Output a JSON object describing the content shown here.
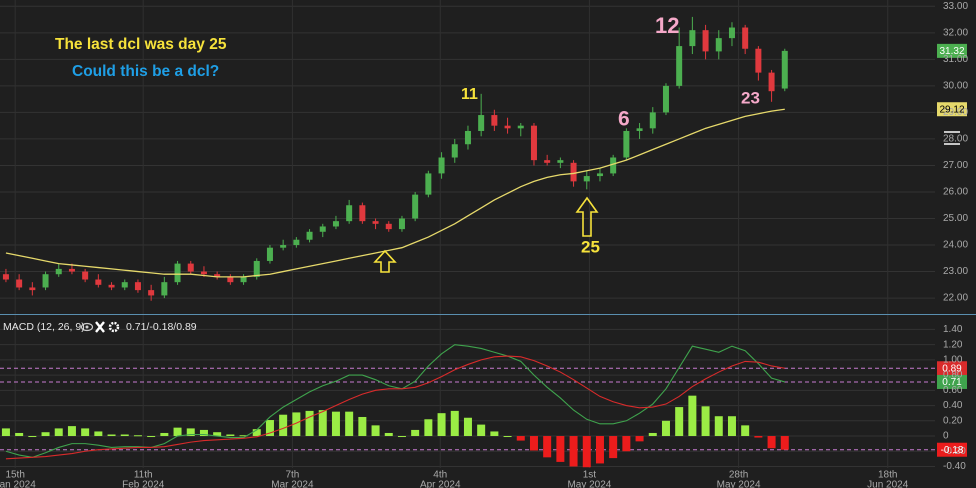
{
  "chart_data": [
    {
      "type": "candlestick",
      "annotations": [
        {
          "text": "The last dcl was day 25",
          "color": "#f6e23b"
        },
        {
          "text": "Could this be a dcl?",
          "color": "#1f9fe6"
        },
        {
          "text": "11",
          "color": "#f6e23b"
        },
        {
          "text": "12",
          "color": "#f5a9c9"
        },
        {
          "text": "6",
          "color": "#f5a9c9"
        },
        {
          "text": "23",
          "color": "#f5a9c9"
        },
        {
          "text": "25",
          "color": "#f6e23b"
        }
      ],
      "open": [
        22.9,
        22.7,
        22.4,
        22.4,
        22.9,
        23.1,
        23.0,
        22.7,
        22.5,
        22.4,
        22.6,
        22.3,
        22.1,
        22.6,
        23.3,
        23.0,
        22.9,
        22.8,
        22.6,
        22.8,
        23.4,
        23.9,
        24.0,
        24.2,
        24.5,
        24.7,
        24.9,
        25.5,
        24.9,
        24.8,
        24.6,
        25.0,
        25.9,
        26.7,
        27.3,
        27.8,
        28.3,
        28.9,
        28.5,
        28.4,
        28.5,
        27.2,
        27.1,
        27.1,
        26.4,
        26.6,
        26.7,
        27.3,
        28.3,
        28.4,
        29.0,
        30.0,
        31.5,
        32.1,
        31.3,
        31.8,
        32.2,
        31.4,
        30.5,
        29.9
      ],
      "high": [
        23.1,
        22.9,
        22.6,
        23.0,
        23.3,
        23.3,
        23.1,
        22.9,
        22.6,
        22.7,
        22.7,
        22.5,
        22.8,
        23.4,
        23.4,
        23.2,
        23.0,
        22.9,
        22.9,
        23.5,
        24.0,
        24.2,
        24.3,
        24.6,
        24.8,
        25.1,
        25.7,
        25.6,
        25.0,
        24.9,
        25.1,
        26.0,
        26.8,
        27.5,
        28.0,
        28.5,
        29.7,
        29.1,
        28.8,
        28.6,
        28.6,
        27.4,
        27.3,
        27.2,
        26.8,
        26.9,
        27.4,
        28.4,
        28.6,
        29.2,
        30.1,
        32.2,
        32.6,
        32.3,
        32.1,
        32.4,
        32.3,
        31.5,
        30.6,
        31.4
      ],
      "low": [
        22.6,
        22.3,
        22.1,
        22.3,
        22.8,
        22.9,
        22.6,
        22.4,
        22.3,
        22.3,
        22.2,
        21.9,
        22.0,
        22.5,
        22.9,
        22.8,
        22.7,
        22.5,
        22.5,
        22.7,
        23.3,
        23.8,
        23.9,
        24.1,
        24.3,
        24.6,
        24.8,
        24.8,
        24.6,
        24.5,
        24.5,
        24.9,
        25.8,
        26.5,
        27.1,
        27.6,
        28.1,
        28.3,
        28.2,
        28.1,
        27.0,
        27.0,
        26.9,
        26.2,
        26.1,
        26.4,
        26.6,
        27.2,
        28.0,
        28.2,
        28.9,
        29.9,
        31.2,
        31.0,
        31.0,
        31.5,
        31.2,
        30.2,
        29.4,
        29.8
      ],
      "close": [
        22.7,
        22.4,
        22.3,
        22.9,
        23.1,
        23.0,
        22.7,
        22.5,
        22.4,
        22.6,
        22.3,
        22.1,
        22.6,
        23.3,
        23.0,
        22.9,
        22.8,
        22.6,
        22.8,
        23.4,
        23.9,
        24.0,
        24.2,
        24.5,
        24.7,
        24.9,
        25.5,
        24.9,
        24.8,
        24.6,
        25.0,
        25.9,
        26.7,
        27.3,
        27.8,
        28.3,
        28.9,
        28.5,
        28.4,
        28.5,
        27.2,
        27.1,
        27.2,
        26.4,
        26.6,
        26.7,
        27.3,
        28.3,
        28.4,
        29.0,
        30.0,
        31.5,
        32.1,
        31.3,
        31.8,
        32.2,
        31.4,
        30.5,
        29.8,
        31.32
      ],
      "up_color": "#4caf50",
      "down_color": "#e0393e",
      "series": [
        {
          "color": "#e6d96b",
          "values": [
            23.7,
            23.6,
            23.5,
            23.4,
            23.3,
            23.25,
            23.2,
            23.15,
            23.1,
            23.05,
            23.0,
            22.95,
            22.9,
            22.9,
            22.9,
            22.85,
            22.8,
            22.8,
            22.8,
            22.85,
            22.9,
            23.0,
            23.1,
            23.2,
            23.3,
            23.4,
            23.5,
            23.6,
            23.7,
            23.8,
            23.9,
            24.1,
            24.3,
            24.55,
            24.8,
            25.1,
            25.4,
            25.7,
            25.95,
            26.2,
            26.4,
            26.55,
            26.65,
            26.7,
            26.8,
            26.9,
            27.05,
            27.2,
            27.4,
            27.6,
            27.8,
            28.0,
            28.2,
            28.4,
            28.55,
            28.7,
            28.85,
            28.95,
            29.05,
            29.12
          ]
        }
      ],
      "xlim": [
        -0.45,
        70.38
      ],
      "ylim": [
        21.4,
        33.2
      ],
      "yticks": [
        {
          "value": 22,
          "label": "22.00"
        },
        {
          "value": 23,
          "label": "23.00"
        },
        {
          "value": 24,
          "label": "24.00"
        },
        {
          "value": 25,
          "label": "25.00"
        },
        {
          "value": 26,
          "label": "26.00"
        },
        {
          "value": 27,
          "label": "27.00"
        },
        {
          "value": 28,
          "label": "28.00"
        },
        {
          "value": 29,
          "label": "29.00"
        },
        {
          "value": 30,
          "label": "30.00"
        },
        {
          "value": 31,
          "label": "31.00"
        },
        {
          "value": 32,
          "label": "32.00"
        },
        {
          "value": 33,
          "label": "33.00"
        }
      ],
      "grid": true
    },
    {
      "type": "macd",
      "title": "MACD (12, 26, 9)",
      "readout": "0.71/-0.18/0.89",
      "series": [
        {
          "color": "#3fa34d",
          "values": [
            -0.2,
            -0.25,
            -0.28,
            -0.22,
            -0.15,
            -0.1,
            -0.1,
            -0.12,
            -0.15,
            -0.14,
            -0.14,
            -0.15,
            -0.1,
            0.0,
            0.02,
            0.02,
            0.0,
            -0.02,
            -0.02,
            0.08,
            0.25,
            0.38,
            0.48,
            0.58,
            0.66,
            0.72,
            0.8,
            0.8,
            0.74,
            0.66,
            0.62,
            0.72,
            0.92,
            1.08,
            1.2,
            1.18,
            1.15,
            1.1,
            1.05,
            0.98,
            0.8,
            0.64,
            0.5,
            0.34,
            0.22,
            0.16,
            0.16,
            0.2,
            0.3,
            0.42,
            0.62,
            0.9,
            1.18,
            1.14,
            1.1,
            1.18,
            1.12,
            0.95,
            0.76,
            0.71
          ]
        },
        {
          "color": "#d92b2b",
          "values": [
            -0.3,
            -0.29,
            -0.28,
            -0.27,
            -0.25,
            -0.23,
            -0.2,
            -0.18,
            -0.17,
            -0.16,
            -0.15,
            -0.15,
            -0.14,
            -0.11,
            -0.08,
            -0.06,
            -0.05,
            -0.04,
            -0.03,
            -0.01,
            0.04,
            0.1,
            0.17,
            0.25,
            0.32,
            0.4,
            0.48,
            0.55,
            0.6,
            0.62,
            0.62,
            0.64,
            0.7,
            0.78,
            0.87,
            0.94,
            1.0,
            1.04,
            1.05,
            1.04,
            0.99,
            0.92,
            0.84,
            0.74,
            0.63,
            0.52,
            0.45,
            0.4,
            0.37,
            0.38,
            0.42,
            0.52,
            0.65,
            0.75,
            0.84,
            0.92,
            0.98,
            0.97,
            0.92,
            0.89
          ]
        }
      ],
      "histogram": [
        0.1,
        0.04,
        0,
        0.05,
        0.1,
        0.13,
        0.1,
        0.06,
        0.02,
        0.02,
        0.01,
        0,
        0.04,
        0.11,
        0.1,
        0.08,
        0.05,
        0.02,
        0.01,
        0.09,
        0.21,
        0.28,
        0.31,
        0.33,
        0.34,
        0.32,
        0.32,
        0.25,
        0.14,
        0.04,
        0,
        0.08,
        0.22,
        0.3,
        0.33,
        0.24,
        0.15,
        0.06,
        0,
        -0.06,
        -0.19,
        -0.28,
        -0.34,
        -0.4,
        -0.41,
        -0.36,
        -0.29,
        -0.2,
        -0.07,
        0.04,
        0.2,
        0.38,
        0.53,
        0.39,
        0.26,
        0.26,
        0.14,
        -0.02,
        -0.16,
        -0.18
      ],
      "hist_up_color": "#9bec45",
      "hist_down_color": "#ec1c1c",
      "xlim": [
        -0.45,
        70.38
      ],
      "ylim": [
        -0.42,
        1.55
      ],
      "yticks": [
        {
          "value": -0.4,
          "label": "-0.40"
        },
        {
          "value": -0.2,
          "label": "-0.20"
        },
        0,
        {
          "value": 0.2,
          "label": "0.20"
        },
        {
          "value": 0.4,
          "label": "0.40"
        },
        {
          "value": 0.6,
          "label": "0.60"
        },
        {
          "value": 0.8,
          "label": "0.80"
        },
        {
          "value": 1.0,
          "label": "1.00"
        },
        {
          "value": 1.2,
          "label": "1.20"
        },
        {
          "value": 1.4,
          "label": "1.40"
        }
      ],
      "xticks": [
        0.7,
        10.4,
        21.7,
        32.9,
        44.2,
        55.5,
        66.8
      ],
      "xtick_labels": [
        [
          "15th",
          "Jan 2024"
        ],
        [
          "11th",
          "Feb 2024"
        ],
        [
          "7th",
          "Mar 2024"
        ],
        [
          "4th",
          "Apr 2024"
        ],
        [
          "1st",
          "May 2024"
        ],
        [
          "28th",
          "May 2024"
        ],
        [
          "18th",
          "Jun 2024"
        ]
      ],
      "grid": true
    }
  ]
}
